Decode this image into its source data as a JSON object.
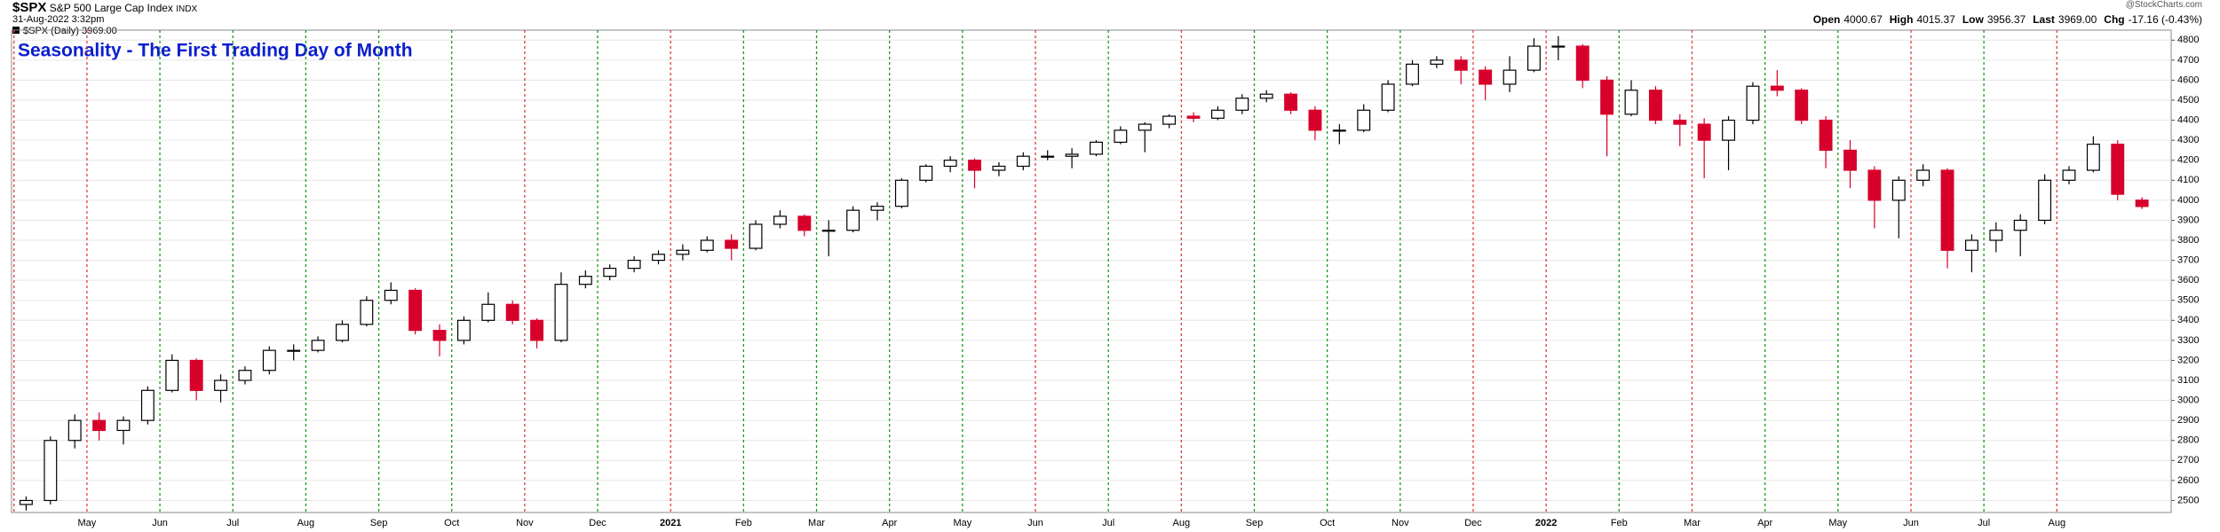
{
  "header": {
    "symbol": "$SPX",
    "name": "S&P 500 Large Cap Index",
    "exchange": "INDX",
    "datetime": "31-Aug-2022 3:32pm",
    "legend": "$SPX (Daily) 3969.00",
    "copyright": "@StockCharts.com",
    "quote": [
      {
        "label": "Open",
        "value": "4000.67"
      },
      {
        "label": "High",
        "value": "4015.37"
      },
      {
        "label": "Low",
        "value": "3956.37"
      },
      {
        "label": "Last",
        "value": "3969.00"
      },
      {
        "label": "Chg",
        "value": "-17.16 (-0.43%)"
      }
    ]
  },
  "chart_data": {
    "type": "candlestick",
    "title": "Seasonality - The First Trading Day of Month",
    "up_color": "#000000",
    "down_color": "#d6002a",
    "grid": true,
    "open": [
      2480,
      2500,
      2800,
      2900,
      2850,
      2900,
      3050,
      3200,
      3050,
      3100,
      3150,
      3250,
      3250,
      3300,
      3380,
      3500,
      3550,
      3350,
      3300,
      3400,
      3480,
      3400,
      3300,
      3580,
      3620,
      3660,
      3700,
      3730,
      3750,
      3800,
      3760,
      3880,
      3920,
      3850,
      3850,
      3950,
      3970,
      4100,
      4170,
      4200,
      4150,
      4170,
      4220,
      4220,
      4230,
      4290,
      4350,
      4380,
      4420,
      4410,
      4450,
      4510,
      4530,
      4450,
      4350,
      4350,
      4450,
      4580,
      4680,
      4700,
      4650,
      4580,
      4650,
      4770,
      4770,
      4600,
      4430,
      4550,
      4400,
      4380,
      4300,
      4400,
      4570,
      4550,
      4400,
      4250,
      4150,
      4000,
      4100,
      4150,
      3750,
      3800,
      3850,
      3900,
      4100,
      4150,
      4280,
      4000.67
    ],
    "high": [
      2520,
      2820,
      2930,
      2940,
      2920,
      3070,
      3230,
      3210,
      3130,
      3170,
      3270,
      3280,
      3320,
      3400,
      3520,
      3590,
      3560,
      3380,
      3420,
      3540,
      3500,
      3410,
      3640,
      3650,
      3680,
      3720,
      3750,
      3780,
      3820,
      3830,
      3900,
      3950,
      3930,
      3900,
      3970,
      3990,
      4110,
      4180,
      4220,
      4210,
      4190,
      4240,
      4250,
      4260,
      4300,
      4370,
      4390,
      4430,
      4440,
      4470,
      4530,
      4550,
      4540,
      4470,
      4380,
      4480,
      4600,
      4700,
      4720,
      4720,
      4670,
      4720,
      4810,
      4820,
      4780,
      4620,
      4600,
      4570,
      4430,
      4410,
      4420,
      4590,
      4650,
      4560,
      4420,
      4300,
      4170,
      4120,
      4180,
      4160,
      3830,
      3890,
      3930,
      4130,
      4170,
      4320,
      4300,
      4015.37
    ],
    "low": [
      2450,
      2480,
      2760,
      2800,
      2780,
      2880,
      3040,
      3000,
      2990,
      3080,
      3130,
      3200,
      3240,
      3290,
      3370,
      3480,
      3330,
      3220,
      3280,
      3390,
      3380,
      3260,
      3290,
      3560,
      3600,
      3640,
      3680,
      3700,
      3740,
      3700,
      3750,
      3860,
      3820,
      3720,
      3840,
      3900,
      3960,
      4090,
      4140,
      4060,
      4120,
      4150,
      4200,
      4160,
      4220,
      4280,
      4240,
      4360,
      4390,
      4400,
      4430,
      4490,
      4430,
      4300,
      4280,
      4340,
      4440,
      4570,
      4660,
      4580,
      4500,
      4540,
      4640,
      4700,
      4560,
      4220,
      4420,
      4380,
      4270,
      4110,
      4150,
      4380,
      4520,
      4380,
      4160,
      4060,
      3860,
      3810,
      4070,
      3660,
      3640,
      3740,
      3720,
      3880,
      4080,
      4140,
      4000,
      3956.37
    ],
    "close": [
      2500,
      2800,
      2900,
      2850,
      2900,
      3050,
      3200,
      3050,
      3100,
      3150,
      3250,
      3250,
      3300,
      3380,
      3500,
      3550,
      3350,
      3300,
      3400,
      3480,
      3400,
      3300,
      3580,
      3620,
      3660,
      3700,
      3730,
      3750,
      3800,
      3760,
      3880,
      3920,
      3850,
      3850,
      3950,
      3970,
      4100,
      4170,
      4200,
      4150,
      4170,
      4220,
      4220,
      4230,
      4290,
      4350,
      4380,
      4420,
      4410,
      4450,
      4510,
      4530,
      4450,
      4350,
      4350,
      4450,
      4580,
      4680,
      4700,
      4650,
      4580,
      4650,
      4770,
      4770,
      4600,
      4430,
      4550,
      4400,
      4380,
      4300,
      4400,
      4570,
      4550,
      4400,
      4250,
      4150,
      4000,
      4100,
      4150,
      3750,
      3800,
      3850,
      3900,
      4100,
      4150,
      4280,
      4030,
      3969
    ],
    "xlim": [
      -0.6,
      88.2
    ],
    "month_starts": [
      {
        "value": 0,
        "label": null,
        "color": "#e03c3c"
      },
      {
        "value": 3,
        "label": "May",
        "color": "#e03c3c"
      },
      {
        "value": 6,
        "label": "Jun",
        "color": "#1a9a1a"
      },
      {
        "value": 9,
        "label": "Jul",
        "color": "#1a9a1a"
      },
      {
        "value": 12,
        "label": "Aug",
        "color": "#1a9a1a"
      },
      {
        "value": 15,
        "label": "Sep",
        "color": "#1a9a1a"
      },
      {
        "value": 18,
        "label": "Oct",
        "color": "#1a9a1a"
      },
      {
        "value": 21,
        "label": "Nov",
        "color": "#e03c3c"
      },
      {
        "value": 24,
        "label": "Dec",
        "color": "#1a9a1a"
      },
      {
        "value": 27,
        "label": "2021",
        "color": "#e03c3c"
      },
      {
        "value": 30,
        "label": "Feb",
        "color": "#1a9a1a"
      },
      {
        "value": 33,
        "label": "Mar",
        "color": "#1a9a1a"
      },
      {
        "value": 36,
        "label": "Apr",
        "color": "#1a9a1a"
      },
      {
        "value": 39,
        "label": "May",
        "color": "#1a9a1a"
      },
      {
        "value": 42,
        "label": "Jun",
        "color": "#e03c3c"
      },
      {
        "value": 45,
        "label": "Jul",
        "color": "#1a9a1a"
      },
      {
        "value": 48,
        "label": "Aug",
        "color": "#e03c3c"
      },
      {
        "value": 51,
        "label": "Sep",
        "color": "#1a9a1a"
      },
      {
        "value": 54,
        "label": "Oct",
        "color": "#1a9a1a"
      },
      {
        "value": 57,
        "label": "Nov",
        "color": "#1a9a1a"
      },
      {
        "value": 60,
        "label": "Dec",
        "color": "#e03c3c"
      },
      {
        "value": 63,
        "label": "2022",
        "color": "#e03c3c"
      },
      {
        "value": 66,
        "label": "Feb",
        "color": "#1a9a1a"
      },
      {
        "value": 69,
        "label": "Mar",
        "color": "#e03c3c"
      },
      {
        "value": 72,
        "label": "Apr",
        "color": "#1a9a1a"
      },
      {
        "value": 75,
        "label": "May",
        "color": "#1a9a1a"
      },
      {
        "value": 78,
        "label": "Jun",
        "color": "#e03c3c"
      },
      {
        "value": 81,
        "label": "Jul",
        "color": "#1a9a1a"
      },
      {
        "value": 84,
        "label": "Aug",
        "color": "#e03c3c"
      }
    ],
    "ylim": [
      2440,
      4850
    ],
    "yticks": [
      2500,
      2600,
      2700,
      2800,
      2900,
      3000,
      3100,
      3200,
      3300,
      3400,
      3500,
      3600,
      3700,
      3800,
      3900,
      4000,
      4100,
      4200,
      4300,
      4400,
      4500,
      4600,
      4700,
      4800
    ]
  }
}
